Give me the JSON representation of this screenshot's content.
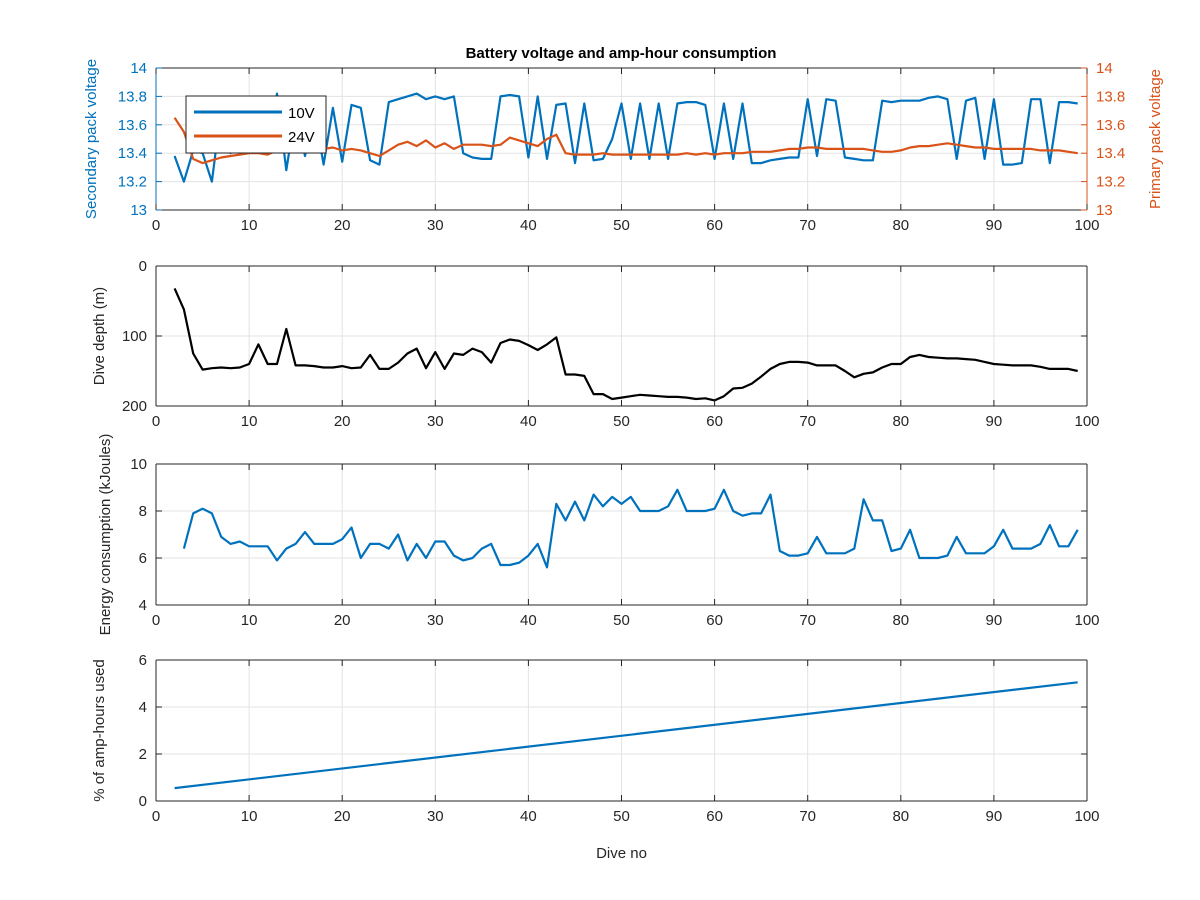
{
  "title": "Battery voltage and amp-hour consumption",
  "colors": {
    "blue": "#0072BD",
    "orange": "#D95319",
    "black": "#000000",
    "grid": "#e3e3e3",
    "axis": "#262626"
  },
  "chart_data": [
    {
      "type": "line",
      "title": "Battery voltage and amp-hour consumption",
      "xlabel": "",
      "ylabel_left": "Secondary pack voltage",
      "ylabel_right": "Primary pack voltage",
      "xlim": [
        0,
        100
      ],
      "ylim_left": [
        13,
        14
      ],
      "ylim_right": [
        13,
        14
      ],
      "xticks": [
        "0",
        "10",
        "20",
        "30",
        "40",
        "50",
        "60",
        "70",
        "80",
        "90",
        "100"
      ],
      "yticks_left": [
        "13",
        "13.2",
        "13.4",
        "13.6",
        "13.8",
        "14"
      ],
      "yticks_right": [
        "13",
        "13.2",
        "13.4",
        "13.6",
        "13.8",
        "14"
      ],
      "grid": true,
      "legend": "top-left",
      "series": [
        {
          "name": "10V",
          "axis": "left",
          "color": "#0072BD",
          "x": [
            2,
            3,
            4,
            5,
            6,
            7,
            8,
            9,
            10,
            11,
            12,
            13,
            14,
            15,
            16,
            17,
            18,
            19,
            20,
            21,
            22,
            23,
            24,
            25,
            26,
            27,
            28,
            29,
            30,
            31,
            32,
            33,
            34,
            35,
            36,
            37,
            38,
            39,
            40,
            41,
            42,
            43,
            44,
            45,
            46,
            47,
            48,
            49,
            50,
            51,
            52,
            53,
            54,
            55,
            56,
            57,
            58,
            59,
            60,
            61,
            62,
            63,
            64,
            65,
            66,
            67,
            68,
            69,
            70,
            71,
            72,
            73,
            74,
            75,
            76,
            77,
            78,
            79,
            80,
            81,
            82,
            83,
            84,
            85,
            86,
            87,
            88,
            89,
            90,
            91,
            92,
            93,
            94,
            95,
            96,
            97,
            98,
            99
          ],
          "y": [
            13.38,
            13.2,
            13.42,
            13.4,
            13.2,
            13.72,
            13.4,
            13.7,
            13.4,
            13.7,
            13.42,
            13.82,
            13.28,
            13.7,
            13.38,
            13.7,
            13.32,
            13.72,
            13.34,
            13.74,
            13.72,
            13.35,
            13.32,
            13.76,
            13.78,
            13.8,
            13.82,
            13.78,
            13.8,
            13.78,
            13.8,
            13.4,
            13.37,
            13.36,
            13.36,
            13.8,
            13.81,
            13.8,
            13.37,
            13.8,
            13.36,
            13.74,
            13.75,
            13.33,
            13.75,
            13.35,
            13.36,
            13.5,
            13.75,
            13.36,
            13.75,
            13.36,
            13.75,
            13.36,
            13.75,
            13.76,
            13.76,
            13.74,
            13.36,
            13.75,
            13.36,
            13.75,
            13.33,
            13.33,
            13.35,
            13.36,
            13.37,
            13.37,
            13.78,
            13.38,
            13.78,
            13.77,
            13.37,
            13.36,
            13.35,
            13.35,
            13.77,
            13.76,
            13.77,
            13.77,
            13.77,
            13.79,
            13.8,
            13.78,
            13.36,
            13.77,
            13.79,
            13.36,
            13.78,
            13.32,
            13.32,
            13.33,
            13.78,
            13.78,
            13.33,
            13.76,
            13.76,
            13.75
          ]
        },
        {
          "name": "24V",
          "axis": "right",
          "color": "#D95319",
          "x": [
            2,
            3,
            4,
            5,
            6,
            7,
            8,
            9,
            10,
            11,
            12,
            13,
            14,
            15,
            16,
            17,
            18,
            19,
            20,
            21,
            22,
            23,
            24,
            25,
            26,
            27,
            28,
            29,
            30,
            31,
            32,
            33,
            34,
            35,
            36,
            37,
            38,
            39,
            40,
            41,
            42,
            43,
            44,
            45,
            46,
            47,
            48,
            49,
            50,
            51,
            52,
            53,
            54,
            55,
            56,
            57,
            58,
            59,
            60,
            61,
            62,
            63,
            64,
            65,
            66,
            67,
            68,
            69,
            70,
            71,
            72,
            73,
            74,
            75,
            76,
            77,
            78,
            79,
            80,
            81,
            82,
            83,
            84,
            85,
            86,
            87,
            88,
            89,
            90,
            91,
            92,
            93,
            94,
            95,
            96,
            97,
            98,
            99
          ],
          "y": [
            13.65,
            13.55,
            13.36,
            13.33,
            13.35,
            13.37,
            13.38,
            13.39,
            13.4,
            13.4,
            13.39,
            13.42,
            13.43,
            13.43,
            13.43,
            13.42,
            13.43,
            13.44,
            13.42,
            13.43,
            13.42,
            13.4,
            13.38,
            13.42,
            13.46,
            13.48,
            13.45,
            13.49,
            13.44,
            13.47,
            13.43,
            13.46,
            13.46,
            13.46,
            13.45,
            13.46,
            13.51,
            13.49,
            13.47,
            13.45,
            13.5,
            13.53,
            13.4,
            13.39,
            13.39,
            13.39,
            13.4,
            13.39,
            13.39,
            13.39,
            13.39,
            13.39,
            13.39,
            13.39,
            13.39,
            13.4,
            13.39,
            13.4,
            13.39,
            13.4,
            13.4,
            13.4,
            13.41,
            13.41,
            13.41,
            13.42,
            13.43,
            13.43,
            13.44,
            13.44,
            13.43,
            13.43,
            13.43,
            13.43,
            13.43,
            13.42,
            13.41,
            13.41,
            13.42,
            13.44,
            13.45,
            13.45,
            13.46,
            13.47,
            13.46,
            13.45,
            13.44,
            13.44,
            13.43,
            13.43,
            13.43,
            13.43,
            13.43,
            13.42,
            13.42,
            13.42,
            13.41,
            13.4
          ]
        }
      ]
    },
    {
      "type": "line",
      "xlabel": "",
      "ylabel": "Dive depth (m)",
      "xlim": [
        0,
        100
      ],
      "ylim": [
        0,
        200
      ],
      "y_reversed": true,
      "xticks": [
        "0",
        "10",
        "20",
        "30",
        "40",
        "50",
        "60",
        "70",
        "80",
        "90",
        "100"
      ],
      "yticks": [
        "0",
        "100",
        "200"
      ],
      "grid": true,
      "series": [
        {
          "color": "#000000",
          "x": [
            2,
            3,
            4,
            5,
            6,
            7,
            8,
            9,
            10,
            11,
            12,
            13,
            14,
            15,
            16,
            17,
            18,
            19,
            20,
            21,
            22,
            23,
            24,
            25,
            26,
            27,
            28,
            29,
            30,
            31,
            32,
            33,
            34,
            35,
            36,
            37,
            38,
            39,
            40,
            41,
            42,
            43,
            44,
            45,
            46,
            47,
            48,
            49,
            50,
            51,
            52,
            53,
            54,
            55,
            56,
            57,
            58,
            59,
            60,
            61,
            62,
            63,
            64,
            65,
            66,
            67,
            68,
            69,
            70,
            71,
            72,
            73,
            74,
            75,
            76,
            77,
            78,
            79,
            80,
            81,
            82,
            83,
            84,
            85,
            86,
            87,
            88,
            89,
            90,
            91,
            92,
            93,
            94,
            95,
            96,
            97,
            98,
            99
          ],
          "y": [
            32,
            62,
            125,
            148,
            146,
            145,
            146,
            145,
            140,
            112,
            140,
            140,
            90,
            142,
            142,
            143,
            145,
            145,
            143,
            146,
            145,
            127,
            147,
            147,
            138,
            125,
            118,
            146,
            123,
            147,
            125,
            127,
            118,
            123,
            138,
            110,
            105,
            107,
            113,
            120,
            112,
            102,
            155,
            155,
            157,
            183,
            183,
            190,
            188,
            186,
            184,
            185,
            186,
            187,
            187,
            188,
            190,
            189,
            192,
            186,
            175,
            174,
            168,
            158,
            147,
            140,
            137,
            137,
            138,
            142,
            142,
            142,
            150,
            159,
            154,
            152,
            145,
            140,
            140,
            130,
            127,
            130,
            131,
            132,
            132,
            133,
            134,
            137,
            140,
            141,
            142,
            142,
            142,
            144,
            147,
            147,
            147,
            150
          ]
        }
      ]
    },
    {
      "type": "line",
      "xlabel": "",
      "ylabel": "Energy consumption (kJoules)",
      "xlim": [
        0,
        100
      ],
      "ylim": [
        4,
        10
      ],
      "xticks": [
        "0",
        "10",
        "20",
        "30",
        "40",
        "50",
        "60",
        "70",
        "80",
        "90",
        "100"
      ],
      "yticks": [
        "4",
        "6",
        "8",
        "10"
      ],
      "grid": true,
      "series": [
        {
          "color": "#0072BD",
          "x": [
            3,
            4,
            5,
            6,
            7,
            8,
            9,
            10,
            11,
            12,
            13,
            14,
            15,
            16,
            17,
            18,
            19,
            20,
            21,
            22,
            23,
            24,
            25,
            26,
            27,
            28,
            29,
            30,
            31,
            32,
            33,
            34,
            35,
            36,
            37,
            38,
            39,
            40,
            41,
            42,
            43,
            44,
            45,
            46,
            47,
            48,
            49,
            50,
            51,
            52,
            53,
            54,
            55,
            56,
            57,
            58,
            59,
            60,
            61,
            62,
            63,
            64,
            65,
            66,
            67,
            68,
            69,
            70,
            71,
            72,
            73,
            74,
            75,
            76,
            77,
            78,
            79,
            80,
            81,
            82,
            83,
            84,
            85,
            86,
            87,
            88,
            89,
            90,
            91,
            92,
            93,
            94,
            95,
            96,
            97,
            98,
            99
          ],
          "y": [
            6.4,
            7.9,
            8.1,
            7.9,
            6.9,
            6.6,
            6.7,
            6.5,
            6.5,
            6.5,
            5.9,
            6.4,
            6.6,
            7.1,
            6.6,
            6.6,
            6.6,
            6.8,
            7.3,
            6.0,
            6.6,
            6.6,
            6.4,
            7.0,
            5.9,
            6.6,
            6.0,
            6.7,
            6.7,
            6.1,
            5.9,
            6.0,
            6.4,
            6.6,
            5.7,
            5.7,
            5.8,
            6.1,
            6.6,
            5.6,
            8.3,
            7.6,
            8.4,
            7.6,
            8.7,
            8.2,
            8.6,
            8.3,
            8.6,
            8.0,
            8.0,
            8.0,
            8.2,
            8.9,
            8.0,
            8.0,
            8.0,
            8.1,
            8.9,
            8.0,
            7.8,
            7.9,
            7.9,
            8.7,
            6.3,
            6.1,
            6.1,
            6.2,
            6.9,
            6.2,
            6.2,
            6.2,
            6.4,
            8.5,
            7.6,
            7.6,
            6.3,
            6.4,
            7.2,
            6.0,
            6.0,
            6.0,
            6.1,
            6.9,
            6.2,
            6.2,
            6.2,
            6.5,
            7.2,
            6.4,
            6.4,
            6.4,
            6.6,
            7.4,
            6.5,
            6.5,
            7.2
          ]
        }
      ]
    },
    {
      "type": "line",
      "xlabel": "Dive no",
      "ylabel": "% of amp-hours used",
      "xlim": [
        0,
        100
      ],
      "ylim": [
        0,
        6
      ],
      "xticks": [
        "0",
        "10",
        "20",
        "30",
        "40",
        "50",
        "60",
        "70",
        "80",
        "90",
        "100"
      ],
      "yticks": [
        "0",
        "2",
        "4",
        "6"
      ],
      "grid": true,
      "series": [
        {
          "color": "#0072BD",
          "x": [
            2,
            99
          ],
          "y": [
            0.55,
            5.05
          ]
        }
      ]
    }
  ]
}
